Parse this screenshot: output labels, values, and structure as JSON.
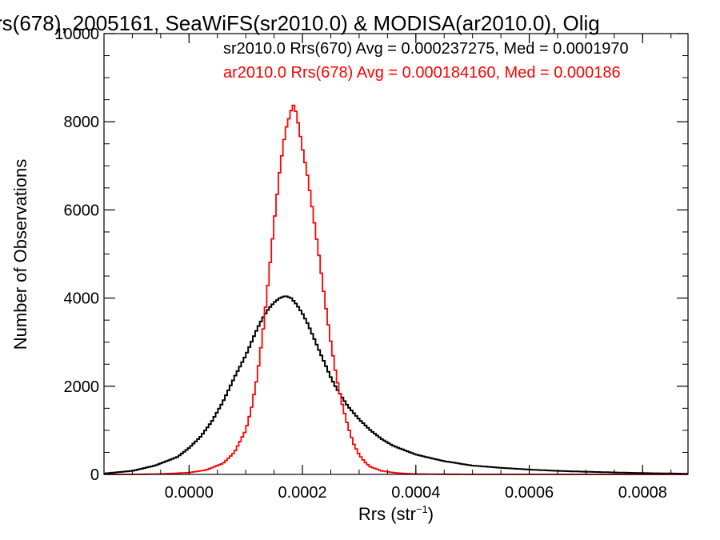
{
  "chart_data": {
    "type": "histogram-step",
    "title": "rs(678), 2005161, SeaWiFS(sr2010.0) & MODISA(ar2010.0), Olig",
    "xlabel": "Rrs (str",
    "xlabel_sup": "−1",
    "xlabel_close": ")",
    "ylabel": "Number of Observations",
    "xlim": [
      -0.00015,
      0.00088
    ],
    "ylim": [
      0,
      10000
    ],
    "xticks": [
      0.0,
      0.0002,
      0.0004,
      0.0006,
      0.0008
    ],
    "xtick_labels": [
      "0.0000",
      "0.0002",
      "0.0004",
      "0.0006",
      "0.0008"
    ],
    "yticks": [
      0,
      2000,
      4000,
      6000,
      8000,
      10000
    ],
    "ytick_labels": [
      "0",
      "2000",
      "4000",
      "6000",
      "8000",
      "10000"
    ],
    "grid": false,
    "legend_placement": "top-right",
    "legend": [
      {
        "text": "sr2010.0 Rrs(670) Avg = 0.000237275, Med = 0.0001970",
        "color": "#000000"
      },
      {
        "text": "ar2010.0 Rrs(678) Avg = 0.000184160, Med = 0.000186",
        "color": "#ff0000"
      }
    ],
    "series": [
      {
        "name": "sr2010.0 Rrs(670)",
        "color": "#000000",
        "x": [
          -0.00015,
          -0.0001,
          -6e-05,
          -2e-05,
          0.0,
          2e-05,
          4e-05,
          6e-05,
          8e-05,
          0.0001,
          0.00011,
          0.00012,
          0.00013,
          0.00014,
          0.00015,
          0.00016,
          0.00017,
          0.00018,
          0.00019,
          0.0002,
          0.00021,
          0.00022,
          0.00023,
          0.00024,
          0.00025,
          0.00026,
          0.00028,
          0.0003,
          0.00032,
          0.00034,
          0.00036,
          0.0004,
          0.00045,
          0.0005,
          0.00055,
          0.0006,
          0.00065,
          0.0007,
          0.0008,
          0.00088
        ],
        "y": [
          20,
          80,
          200,
          400,
          600,
          850,
          1200,
          1650,
          2200,
          2700,
          3000,
          3300,
          3550,
          3750,
          3900,
          4000,
          4050,
          4000,
          3850,
          3650,
          3400,
          3100,
          2800,
          2500,
          2200,
          1950,
          1550,
          1250,
          1000,
          800,
          650,
          450,
          300,
          200,
          150,
          110,
          80,
          60,
          30,
          15
        ]
      },
      {
        "name": "ar2010.0 Rrs(678)",
        "color": "#ff0000",
        "x": [
          -0.00015,
          -0.0001,
          -5e-05,
          0.0,
          3e-05,
          6e-05,
          8e-05,
          0.0001,
          0.00011,
          0.00012,
          0.00013,
          0.00014,
          0.00015,
          0.00016,
          0.00017,
          0.00018,
          0.000185,
          0.00019,
          0.0002,
          0.00021,
          0.00022,
          0.00023,
          0.00024,
          0.00025,
          0.00026,
          0.00027,
          0.00028,
          0.00029,
          0.0003,
          0.00031,
          0.00032,
          0.00034,
          0.00036,
          0.00038,
          0.0004,
          0.00045,
          0.0005,
          0.00088
        ],
        "y": [
          0,
          0,
          10,
          40,
          100,
          250,
          500,
          1000,
          1500,
          2200,
          3200,
          4400,
          5700,
          6900,
          7800,
          8250,
          8400,
          8150,
          7400,
          6700,
          5800,
          4900,
          3900,
          3000,
          2200,
          1600,
          1100,
          700,
          450,
          280,
          170,
          80,
          40,
          20,
          10,
          5,
          0,
          0
        ]
      }
    ]
  }
}
